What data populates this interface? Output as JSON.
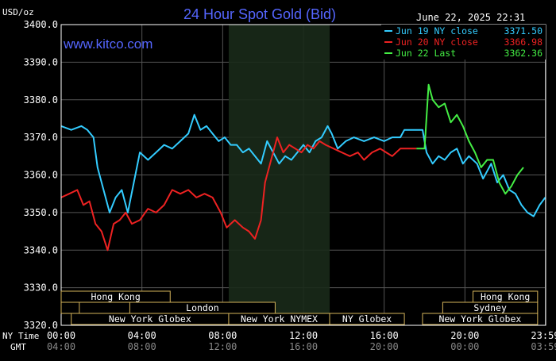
{
  "chart_data": {
    "type": "line",
    "title": "24 Hour Spot Gold (Bid)",
    "ylabel": "USD/oz",
    "timestamp": "June 22, 2025 22:31",
    "watermark": "www.kitco.com",
    "ylim": [
      3320,
      3400
    ],
    "yticks": [
      "3400.0",
      "3390.0",
      "3380.0",
      "3370.0",
      "3360.0",
      "3350.0",
      "3340.0",
      "3330.0",
      "3320.0"
    ],
    "ytick_values": [
      3400,
      3390,
      3380,
      3370,
      3360,
      3350,
      3340,
      3330,
      3320
    ],
    "xlim": [
      0,
      24
    ],
    "x_axis_label": "NY Time",
    "x_axis2_label": "GMT",
    "xticks": [
      {
        "h": 0,
        "ny": "00:00",
        "gmt": "04:00"
      },
      {
        "h": 4,
        "ny": "04:00",
        "gmt": "08:00"
      },
      {
        "h": 8,
        "ny": "08:00",
        "gmt": "12:00"
      },
      {
        "h": 12,
        "ny": "12:00",
        "gmt": "16:00"
      },
      {
        "h": 16,
        "ny": "16:00",
        "gmt": "20:00"
      },
      {
        "h": 20,
        "ny": "20:00",
        "gmt": "00:00"
      },
      {
        "h": 23.98,
        "ny": "23:59",
        "gmt": "03:59"
      }
    ],
    "shaded_session": {
      "start_hour": 8.3,
      "end_hour": 13.3
    },
    "legend": [
      {
        "label": "Jun 19 NY close",
        "value": "3371.50",
        "color": "#33ccff"
      },
      {
        "label": "Jun 20 NY close",
        "value": "3366.98",
        "color": "#ee2222"
      },
      {
        "label": "Jun 22 Last",
        "value": "3362.36",
        "color": "#44ee44"
      }
    ],
    "sessions": [
      {
        "name": "Hong Kong",
        "start": 0,
        "end": 5.4,
        "row": 0
      },
      {
        "name": "Hong Kong",
        "start": 20.4,
        "end": 23.6,
        "row": 0
      },
      {
        "name": "",
        "start": 0,
        "end": 0.9,
        "row": 1
      },
      {
        "name": "London",
        "start": 3.4,
        "end": 10.6,
        "row": 1
      },
      {
        "name": "Sydney",
        "start": 18.9,
        "end": 23.6,
        "row": 1
      },
      {
        "name": "New York Globex",
        "start": 0.5,
        "end": 8.3,
        "row": 2
      },
      {
        "name": "New York NYMEX",
        "start": 8.3,
        "end": 13.3,
        "row": 2
      },
      {
        "name": "NY Globex",
        "start": 13.3,
        "end": 17.0,
        "row": 2
      },
      {
        "name": "New York Globex",
        "start": 17.9,
        "end": 23.6,
        "row": 2
      }
    ],
    "series": [
      {
        "name": "Jun 19",
        "color": "#33ccff",
        "points": [
          [
            0,
            3373
          ],
          [
            0.5,
            3372
          ],
          [
            1,
            3373
          ],
          [
            1.3,
            3372
          ],
          [
            1.6,
            3370
          ],
          [
            1.8,
            3362
          ],
          [
            2.1,
            3356
          ],
          [
            2.4,
            3350
          ],
          [
            2.7,
            3354
          ],
          [
            3.0,
            3356
          ],
          [
            3.3,
            3350
          ],
          [
            3.6,
            3358
          ],
          [
            3.9,
            3366
          ],
          [
            4.3,
            3364
          ],
          [
            4.7,
            3366
          ],
          [
            5.1,
            3368
          ],
          [
            5.5,
            3367
          ],
          [
            5.9,
            3369
          ],
          [
            6.3,
            3371
          ],
          [
            6.6,
            3376
          ],
          [
            6.9,
            3372
          ],
          [
            7.2,
            3373
          ],
          [
            7.5,
            3371
          ],
          [
            7.8,
            3369
          ],
          [
            8.1,
            3370
          ],
          [
            8.4,
            3368
          ],
          [
            8.7,
            3368
          ],
          [
            9.0,
            3366
          ],
          [
            9.3,
            3367
          ],
          [
            9.6,
            3365
          ],
          [
            9.9,
            3363
          ],
          [
            10.2,
            3369
          ],
          [
            10.5,
            3366
          ],
          [
            10.8,
            3363
          ],
          [
            11.1,
            3365
          ],
          [
            11.4,
            3364
          ],
          [
            11.7,
            3366
          ],
          [
            12.0,
            3368
          ],
          [
            12.3,
            3366
          ],
          [
            12.6,
            3369
          ],
          [
            12.9,
            3370
          ],
          [
            13.2,
            3373
          ],
          [
            13.4,
            3371
          ],
          [
            13.7,
            3367
          ],
          [
            14.1,
            3369
          ],
          [
            14.5,
            3370
          ],
          [
            15.0,
            3369
          ],
          [
            15.5,
            3370
          ],
          [
            16.0,
            3369
          ],
          [
            16.4,
            3370
          ],
          [
            16.8,
            3370
          ],
          [
            17.0,
            3372
          ],
          [
            17.9,
            3372
          ],
          [
            18.1,
            3366
          ],
          [
            18.4,
            3363
          ],
          [
            18.7,
            3365
          ],
          [
            19.0,
            3364
          ],
          [
            19.3,
            3366
          ],
          [
            19.6,
            3367
          ],
          [
            19.9,
            3363
          ],
          [
            20.2,
            3365
          ],
          [
            20.6,
            3363
          ],
          [
            20.9,
            3359
          ],
          [
            21.3,
            3363
          ],
          [
            21.6,
            3358
          ],
          [
            21.9,
            3360
          ],
          [
            22.2,
            3356
          ],
          [
            22.5,
            3355
          ],
          [
            22.8,
            3352
          ],
          [
            23.1,
            3350
          ],
          [
            23.4,
            3349
          ],
          [
            23.7,
            3352
          ],
          [
            23.98,
            3354
          ]
        ]
      },
      {
        "name": "Jun 20",
        "color": "#ee2222",
        "points": [
          [
            0,
            3354
          ],
          [
            0.4,
            3355
          ],
          [
            0.8,
            3356
          ],
          [
            1.1,
            3352
          ],
          [
            1.4,
            3353
          ],
          [
            1.7,
            3347
          ],
          [
            2.0,
            3345
          ],
          [
            2.3,
            3340
          ],
          [
            2.6,
            3347
          ],
          [
            2.9,
            3348
          ],
          [
            3.2,
            3350
          ],
          [
            3.5,
            3347
          ],
          [
            3.9,
            3348
          ],
          [
            4.3,
            3351
          ],
          [
            4.7,
            3350
          ],
          [
            5.1,
            3352
          ],
          [
            5.5,
            3356
          ],
          [
            5.9,
            3355
          ],
          [
            6.3,
            3356
          ],
          [
            6.7,
            3354
          ],
          [
            7.1,
            3355
          ],
          [
            7.5,
            3354
          ],
          [
            7.9,
            3350
          ],
          [
            8.2,
            3346
          ],
          [
            8.6,
            3348
          ],
          [
            9.0,
            3346
          ],
          [
            9.3,
            3345
          ],
          [
            9.6,
            3343
          ],
          [
            9.9,
            3348
          ],
          [
            10.1,
            3358
          ],
          [
            10.4,
            3364
          ],
          [
            10.7,
            3370
          ],
          [
            11.0,
            3366
          ],
          [
            11.3,
            3368
          ],
          [
            11.6,
            3367
          ],
          [
            11.9,
            3366
          ],
          [
            12.2,
            3368
          ],
          [
            12.5,
            3367
          ],
          [
            12.8,
            3369
          ],
          [
            13.1,
            3368
          ],
          [
            13.5,
            3367
          ],
          [
            13.9,
            3366
          ],
          [
            14.3,
            3365
          ],
          [
            14.7,
            3366
          ],
          [
            15.0,
            3364
          ],
          [
            15.4,
            3366
          ],
          [
            15.8,
            3367
          ],
          [
            16.1,
            3366
          ],
          [
            16.4,
            3365
          ],
          [
            16.8,
            3367
          ],
          [
            17.2,
            3367
          ],
          [
            17.6,
            3367
          ]
        ]
      },
      {
        "name": "Jun 22",
        "color": "#44ee44",
        "points": [
          [
            17.6,
            3367
          ],
          [
            18.0,
            3367
          ],
          [
            18.2,
            3384
          ],
          [
            18.4,
            3380
          ],
          [
            18.7,
            3378
          ],
          [
            19.0,
            3379
          ],
          [
            19.3,
            3374
          ],
          [
            19.6,
            3376
          ],
          [
            19.9,
            3373
          ],
          [
            20.2,
            3369
          ],
          [
            20.5,
            3366
          ],
          [
            20.8,
            3362
          ],
          [
            21.1,
            3364
          ],
          [
            21.4,
            3364
          ],
          [
            21.7,
            3358
          ],
          [
            22.0,
            3355
          ],
          [
            22.3,
            3357
          ],
          [
            22.6,
            3360
          ],
          [
            22.9,
            3362
          ]
        ]
      }
    ]
  }
}
